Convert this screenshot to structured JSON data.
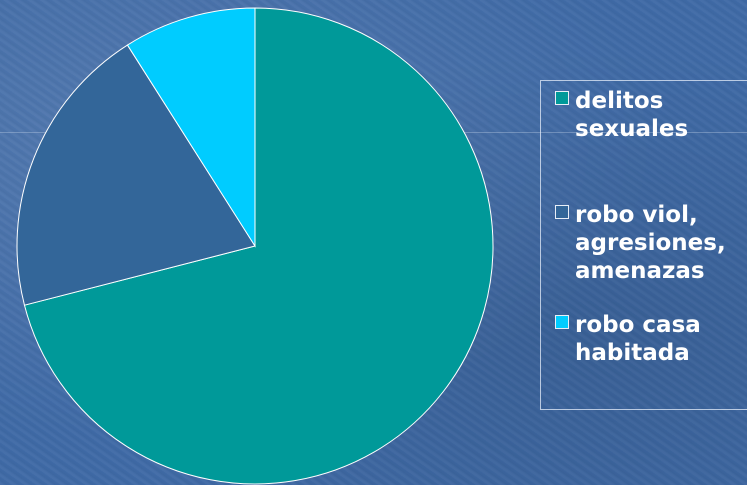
{
  "chart_data": {
    "type": "pie",
    "title": "",
    "legend_position": "right",
    "series": [
      {
        "name": "delitos sexuales",
        "value": 71,
        "color": "#009999"
      },
      {
        "name": "robo viol, agresiones, amenazas",
        "value": 20,
        "color": "#336699"
      },
      {
        "name": "robo casa habitada",
        "value": 9,
        "color": "#00ccff"
      }
    ]
  },
  "legend": {
    "labels": [
      "delitos\nsexuales",
      "robo viol,\nagresiones,\namenazas",
      "robo casa\nhabitada"
    ]
  }
}
